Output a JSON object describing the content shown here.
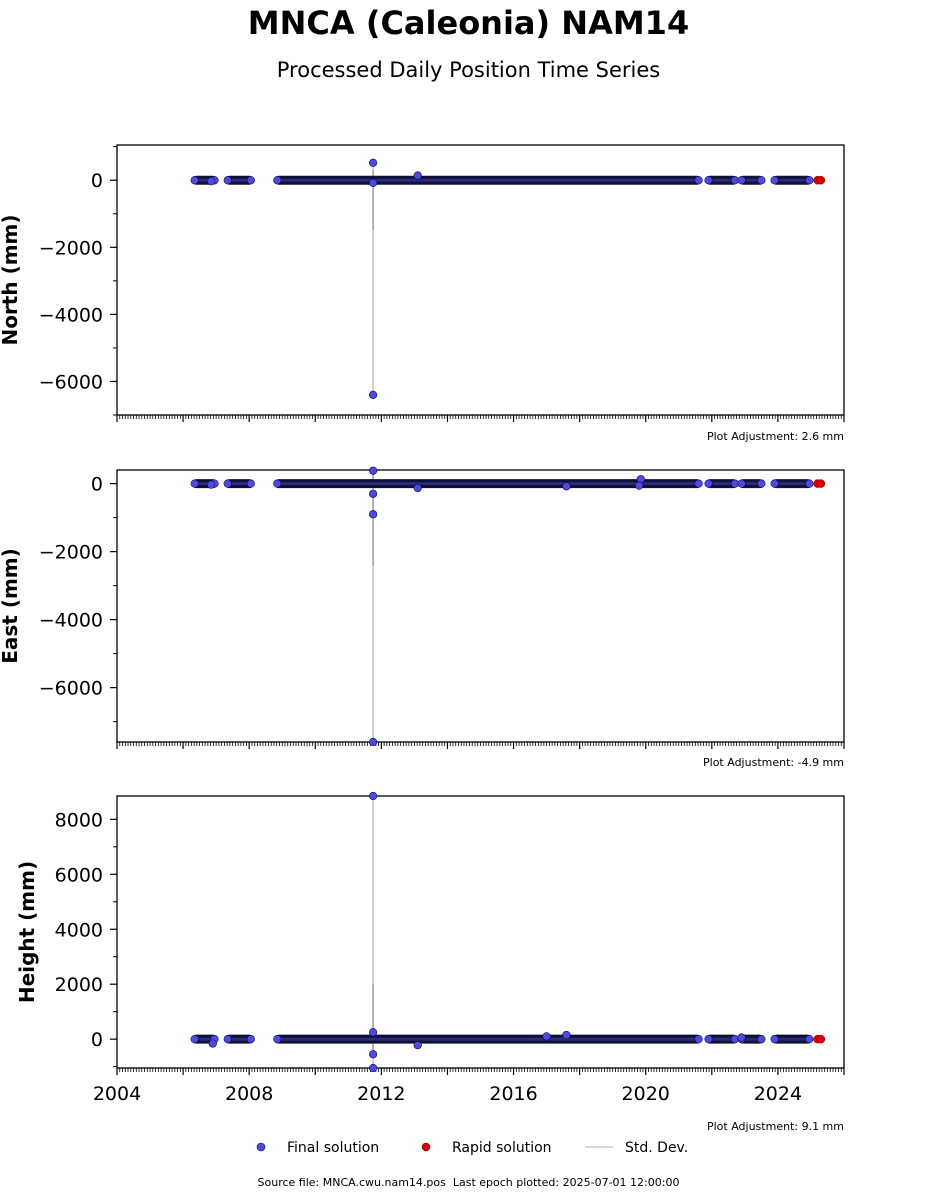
{
  "title": "MNCA (Caleonia) NAM14",
  "subtitle": "Processed Daily Position Time Series",
  "footer": "Source file: MNCA.cwu.nam14.pos  Last epoch plotted: 2025-07-01 12:00:00",
  "legend": {
    "final": "Final solution",
    "rapid": "Rapid solution",
    "stddev": "Std. Dev."
  },
  "colors": {
    "final": "#4a4ae6",
    "final_edge": "#10103a",
    "rapid": "#e00000",
    "stddev": "#c8c8c8"
  },
  "chart_data": [
    {
      "type": "scatter",
      "ylabel": "North (mm)",
      "ylim": [
        -7000,
        1050
      ],
      "yticks": [
        0,
        -2000,
        -4000,
        -6000
      ],
      "xlim": [
        2004,
        2026
      ],
      "adjustment": "Plot Adjustment: 2.6 mm",
      "spike": {
        "x": 2011.75,
        "low": -6400,
        "high": 520,
        "std_low": -1500,
        "std_high": 300
      },
      "outliers": [
        [
          2011.75,
          520
        ],
        [
          2011.75,
          -6400
        ],
        [
          2011.75,
          -80
        ],
        [
          2013.1,
          140
        ],
        [
          2006.85,
          -30
        ]
      ]
    },
    {
      "type": "scatter",
      "ylabel": "East (mm)",
      "ylim": [
        -7600,
        400
      ],
      "yticks": [
        0,
        -2000,
        -4000,
        -6000
      ],
      "xlim": [
        2004,
        2026
      ],
      "adjustment": "Plot Adjustment: -4.9 mm",
      "spike": {
        "x": 2011.75,
        "low": -7600,
        "high": 380,
        "std_low": -2400,
        "std_high": 300
      },
      "outliers": [
        [
          2011.75,
          380
        ],
        [
          2011.75,
          -300
        ],
        [
          2011.75,
          -900
        ],
        [
          2011.75,
          -7600
        ],
        [
          2013.1,
          -130
        ],
        [
          2017.6,
          -80
        ],
        [
          2019.85,
          130
        ],
        [
          2019.8,
          -60
        ],
        [
          2006.85,
          -30
        ]
      ]
    },
    {
      "type": "scatter",
      "ylabel": "Height (mm)",
      "ylim": [
        -1050,
        8850
      ],
      "yticks": [
        8000,
        6000,
        4000,
        2000,
        0
      ],
      "xlim": [
        2004,
        2026
      ],
      "xticks": [
        2004,
        2008,
        2012,
        2016,
        2020,
        2024
      ],
      "adjustment": "Plot Adjustment: 9.1 mm",
      "spike": {
        "x": 2011.75,
        "low": -1050,
        "high": 8850,
        "std_low": -500,
        "std_high": 2000
      },
      "outliers": [
        [
          2011.75,
          8850
        ],
        [
          2011.75,
          250
        ],
        [
          2011.75,
          -550
        ],
        [
          2011.75,
          -1050
        ],
        [
          2013.1,
          -220
        ],
        [
          2017.0,
          100
        ],
        [
          2017.6,
          150
        ],
        [
          2006.9,
          -160
        ],
        [
          2022.9,
          60
        ]
      ]
    }
  ],
  "segments": [
    [
      2006.35,
      2006.95
    ],
    [
      2007.35,
      2008.05
    ],
    [
      2008.85,
      2021.6
    ],
    [
      2021.9,
      2022.7
    ],
    [
      2022.9,
      2023.5
    ],
    [
      2023.9,
      2024.95
    ]
  ],
  "rapid_points": [
    2025.2,
    2025.3
  ]
}
